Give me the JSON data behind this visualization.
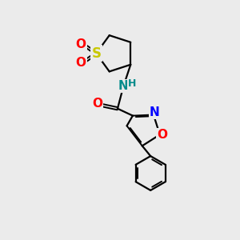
{
  "background_color": "#ebebeb",
  "bond_color": "#000000",
  "S_color": "#c8c800",
  "O_color": "#ff0000",
  "N_color": "#0000ff",
  "NH_color": "#008b8b",
  "figsize": [
    3.0,
    3.0
  ],
  "dpi": 100,
  "xlim": [
    0,
    10
  ],
  "ylim": [
    0,
    10
  ]
}
